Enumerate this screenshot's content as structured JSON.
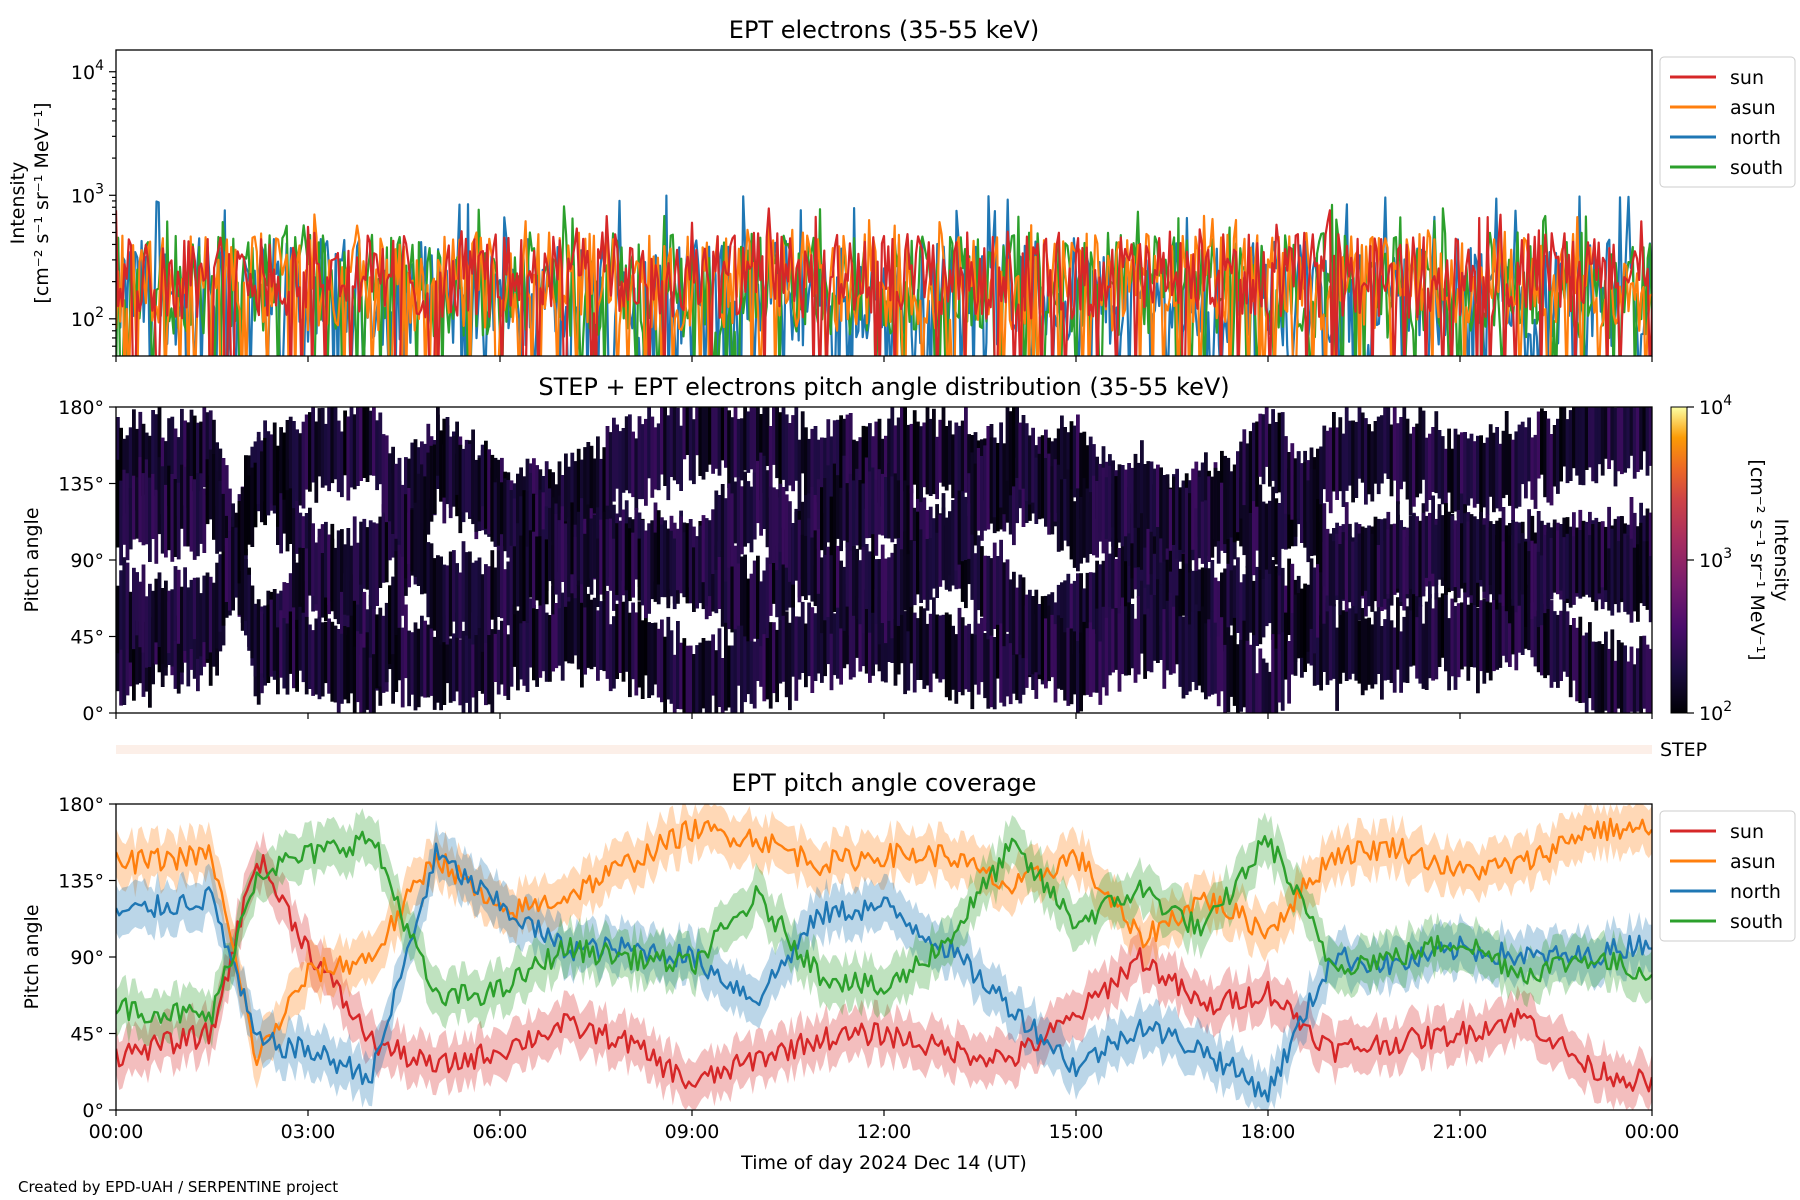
{
  "colors": {
    "sun": "#d62728",
    "asun": "#ff7f0e",
    "north": "#1f77b4",
    "south": "#2ca02c",
    "step_band": "#fcefe8"
  },
  "footer": {
    "credit": "Created by EPD-UAH / SERPENTINE project"
  },
  "step_label": "STEP",
  "chart_data": [
    {
      "type": "line",
      "title": "EPT electrons (35-55 keV)",
      "ylabel_line1": "Intensity",
      "ylabel_line2": "[cm⁻² s⁻¹ sr⁻¹ MeV⁻¹]",
      "yscale": "log",
      "ylim": [
        50,
        15000
      ],
      "yticks": [
        {
          "value": 100,
          "base": "10",
          "exp": "2"
        },
        {
          "value": 1000,
          "base": "10",
          "exp": "3"
        },
        {
          "value": 10000,
          "base": "10",
          "exp": "4"
        }
      ],
      "xlim_hours": [
        0,
        24
      ],
      "grid": false,
      "legend": "outside upper right",
      "legend_entries": [
        "sun",
        "asun",
        "north",
        "south"
      ],
      "series": [
        {
          "name": "sun",
          "typical_range": [
            100,
            500
          ],
          "peak_max": 800
        },
        {
          "name": "asun",
          "typical_range": [
            80,
            500
          ],
          "peak_max": 700
        },
        {
          "name": "north",
          "typical_range": [
            60,
            450
          ],
          "peak_max": 1000
        },
        {
          "name": "south",
          "typical_range": [
            70,
            500
          ],
          "peak_max": 850
        }
      ]
    },
    {
      "type": "heatmap",
      "title": "STEP + EPT electrons pitch angle distribution (35-55 keV)",
      "ylabel": "Pitch angle",
      "yticks": [
        "0°",
        "45°",
        "90°",
        "135°",
        "180°"
      ],
      "colorbar": {
        "label_line1": "Intensity",
        "label_line2": "[cm⁻² s⁻¹ sr⁻¹ MeV⁻¹]",
        "scale": "log",
        "range": [
          100,
          10000
        ],
        "colormap": "inferno",
        "ticks": [
          {
            "value": 100,
            "base": "10",
            "exp": "2"
          },
          {
            "value": 1000,
            "base": "10",
            "exp": "3"
          },
          {
            "value": 10000,
            "base": "10",
            "exp": "4"
          }
        ]
      },
      "typical_intensity": [
        100,
        300
      ]
    },
    {
      "type": "line",
      "title": "EPT pitch angle coverage",
      "ylabel": "Pitch angle",
      "ylim": [
        0,
        180
      ],
      "yticks": [
        "0°",
        "45°",
        "90°",
        "135°",
        "180°"
      ],
      "xlabel": "Time of day 2024 Dec 14 (UT)",
      "xticks": [
        "00:00",
        "03:00",
        "06:00",
        "09:00",
        "12:00",
        "15:00",
        "18:00",
        "21:00",
        "00:00"
      ],
      "legend": "outside upper right",
      "legend_entries": [
        "sun",
        "asun",
        "north",
        "south"
      ],
      "series": [
        {
          "name": "sun",
          "hours": [
            0,
            1.5,
            2.2,
            3,
            4,
            5,
            6,
            7,
            8,
            9,
            10,
            11,
            12,
            13,
            14,
            15,
            16,
            17,
            18,
            19,
            20,
            21,
            22,
            23,
            24
          ],
          "pitch": [
            32,
            45,
            150,
            95,
            40,
            25,
            35,
            50,
            40,
            15,
            30,
            42,
            45,
            35,
            30,
            55,
            90,
            60,
            70,
            35,
            40,
            45,
            55,
            25,
            15
          ]
        },
        {
          "name": "asun",
          "hours": [
            0,
            1.5,
            2.2,
            3,
            4,
            5,
            6,
            7,
            8,
            9,
            10,
            11,
            12,
            13,
            14,
            15,
            16,
            17,
            18,
            19,
            20,
            21,
            22,
            23,
            24
          ],
          "pitch": [
            145,
            150,
            30,
            80,
            90,
            150,
            115,
            125,
            145,
            165,
            160,
            145,
            150,
            150,
            130,
            150,
            100,
            125,
            105,
            150,
            155,
            140,
            145,
            165,
            165
          ]
        },
        {
          "name": "north",
          "hours": [
            0,
            1.5,
            2.2,
            3,
            4,
            5,
            6,
            7,
            8,
            9,
            10,
            11,
            12,
            13,
            14,
            15,
            16,
            17,
            18,
            19,
            20,
            21,
            22,
            23,
            24
          ],
          "pitch": [
            115,
            125,
            40,
            35,
            20,
            150,
            120,
            95,
            95,
            90,
            65,
            115,
            120,
            95,
            60,
            25,
            50,
            35,
            10,
            90,
            85,
            95,
            90,
            90,
            100
          ]
        },
        {
          "name": "south",
          "hours": [
            0,
            1.5,
            2.2,
            3,
            4,
            5,
            6,
            7,
            8,
            9,
            10,
            11,
            12,
            13,
            14,
            15,
            16,
            17,
            18,
            19,
            20,
            21,
            22,
            23,
            24
          ],
          "pitch": [
            60,
            55,
            140,
            150,
            160,
            65,
            70,
            95,
            90,
            85,
            125,
            80,
            70,
            100,
            155,
            110,
            130,
            105,
            160,
            85,
            90,
            100,
            80,
            90,
            80
          ]
        }
      ]
    }
  ]
}
